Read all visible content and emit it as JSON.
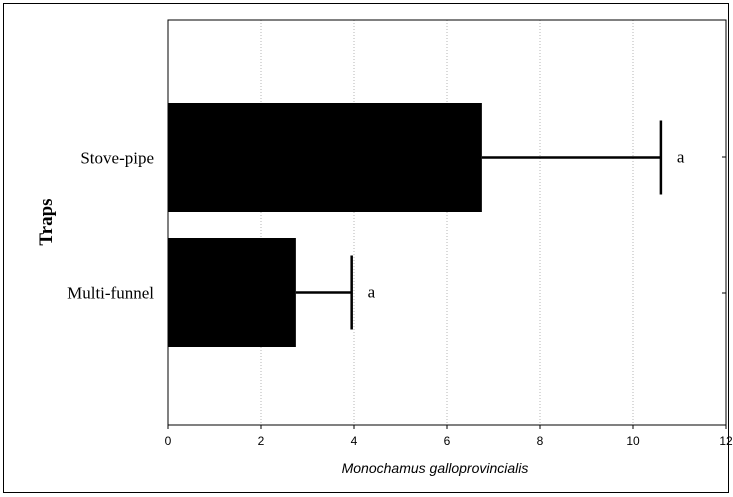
{
  "chart_data": {
    "type": "bar",
    "orientation": "horizontal",
    "title": "",
    "xlabel": "Monochamus galloprovincialis",
    "ylabel": "Traps",
    "categories": [
      "Stove-pipe",
      "Multi-funnel"
    ],
    "values": [
      6.75,
      2.75
    ],
    "error_upper": [
      10.6,
      3.95
    ],
    "significance_labels": [
      "a",
      "a"
    ],
    "xlim": [
      0,
      12
    ],
    "xticks": [
      "0",
      "2",
      "4",
      "6",
      "8",
      "10",
      "12"
    ],
    "grid": true,
    "bar_color": "#000000"
  }
}
